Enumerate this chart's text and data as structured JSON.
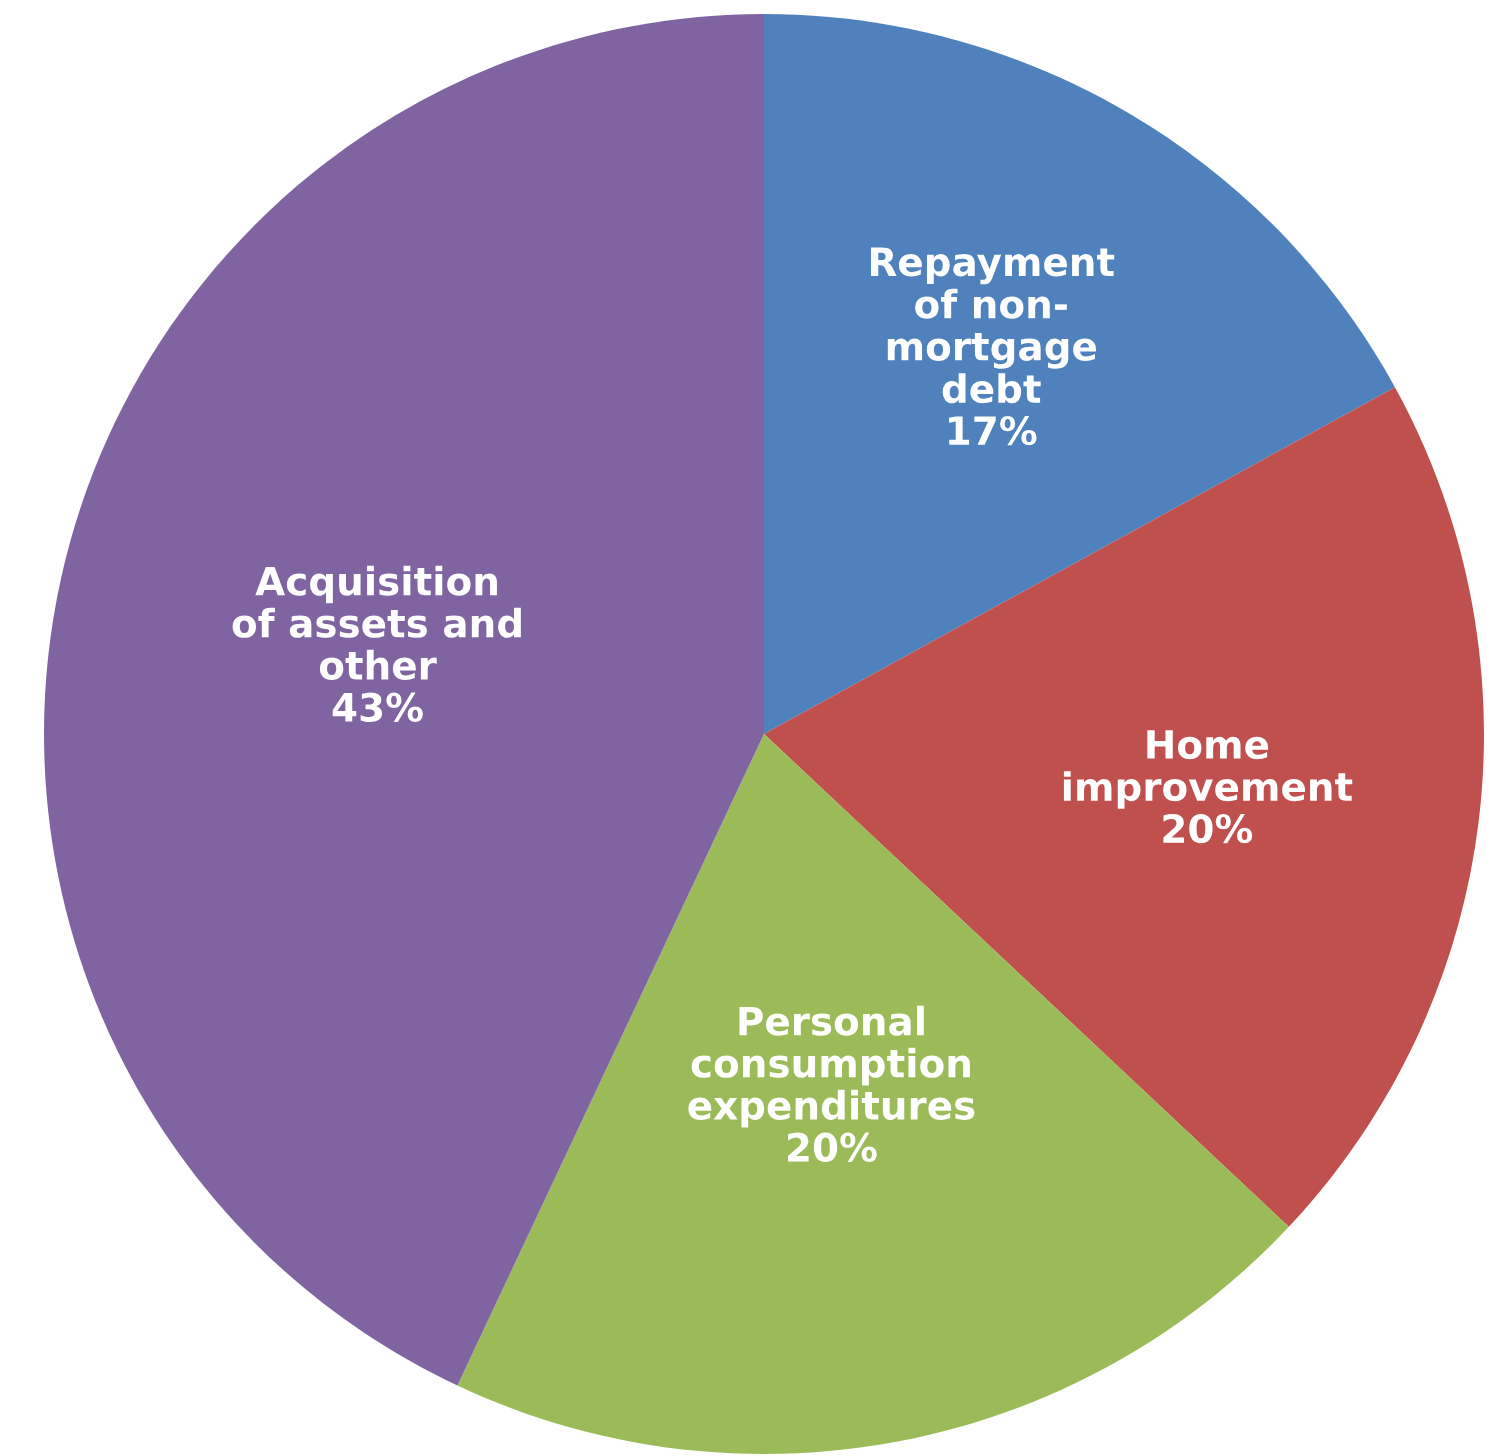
{
  "chart_data": {
    "type": "pie",
    "categories": [
      "Repayment\nof non-\nmortgage\ndebt",
      "Home\nimprovement",
      "Personal\nconsumption\nexpenditures",
      "Acquisition\nof assets and\nother"
    ],
    "values": [
      17,
      20,
      20,
      43
    ],
    "value_labels": [
      "17%",
      "20%",
      "20%",
      "43%"
    ],
    "colors": [
      "#4f81bd",
      "#c0504d",
      "#9bbb59",
      "#8064a2"
    ],
    "legend": false
  }
}
